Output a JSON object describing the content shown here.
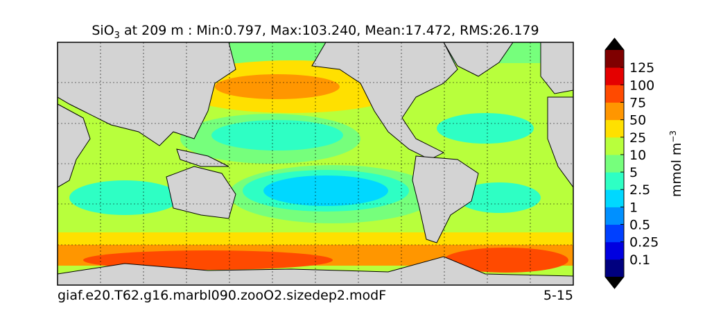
{
  "title": {
    "main": "SiO",
    "subscript": "3",
    "rest": " at 209 m : Min:0.797, Max:103.240, Mean:17.472, RMS:26.179"
  },
  "colorbar": {
    "label": "mmol m",
    "label_superscript": "−3",
    "levels": [
      0.1,
      0.25,
      0.5,
      1,
      2.5,
      5,
      10,
      25,
      50,
      75,
      100,
      125
    ],
    "colors": [
      "#00007f",
      "#0000e0",
      "#0040ff",
      "#0090ff",
      "#00d8ff",
      "#2effc4",
      "#76ff7c",
      "#b8ff3c",
      "#ffe000",
      "#ff9600",
      "#ff4a00",
      "#e40000",
      "#7f0000"
    ],
    "extend_color": "#000000"
  },
  "footer": {
    "left": "giaf.e20.T62.g16.marbl090.zooO2.sizedep2.modF",
    "right": "5-15"
  }
}
